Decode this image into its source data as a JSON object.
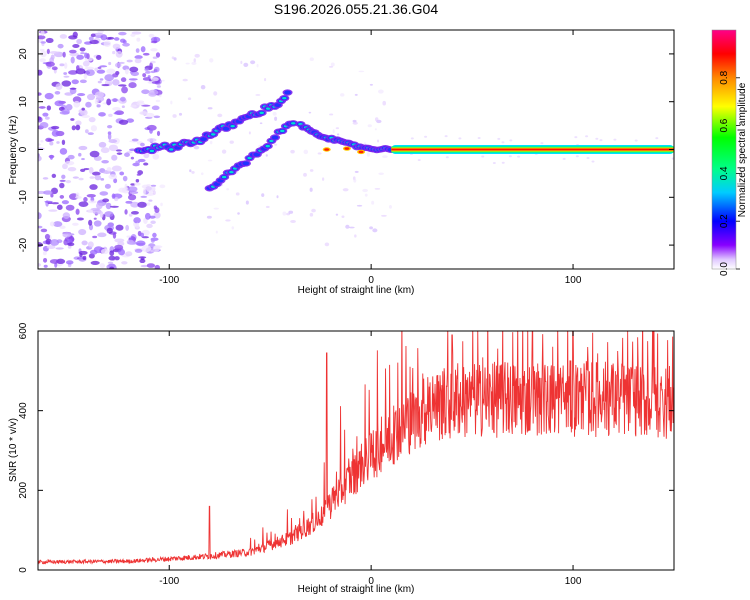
{
  "title": "S196.2026.055.21.36.G04",
  "chart_data": [
    {
      "type": "heatmap",
      "name": "spectrogram",
      "xlabel": "Height of straight line (km)",
      "ylabel": "Frequency (Hz)",
      "xlim": [
        -165,
        150
      ],
      "ylim": [
        -25,
        25
      ],
      "x_ticks": [
        -100,
        0,
        100
      ],
      "y_ticks": [
        -20,
        -10,
        0,
        10,
        20
      ],
      "colorbar": {
        "label": "Normalized spectral amplitude",
        "range": [
          0,
          1
        ],
        "ticks": [
          0.0,
          0.2,
          0.4,
          0.6,
          0.8
        ],
        "colormap": "rainbow",
        "colors": [
          "#ffffff",
          "#8800ff",
          "#0000ff",
          "#00ffff",
          "#00ff00",
          "#ffff00",
          "#ff8800",
          "#ff0000",
          "#ff0088"
        ]
      },
      "features": {
        "noise_region_x": [
          -165,
          -115
        ],
        "line_upper_branch": [
          [
            -115,
            0
          ],
          [
            -100,
            0.5
          ],
          [
            -85,
            2
          ],
          [
            -70,
            5
          ],
          [
            -55,
            8
          ],
          [
            -45,
            10
          ],
          [
            -40,
            12
          ]
        ],
        "line_lower_branch": [
          [
            -80,
            -8
          ],
          [
            -70,
            -5
          ],
          [
            -60,
            -2
          ],
          [
            -50,
            1
          ],
          [
            -45,
            4
          ],
          [
            -38,
            6
          ]
        ],
        "converging_line": [
          [
            -35,
            5
          ],
          [
            -25,
            3
          ],
          [
            -15,
            1.5
          ],
          [
            -5,
            0.5
          ],
          [
            0,
            0.2
          ],
          [
            10,
            0
          ]
        ],
        "steady_tone": {
          "x_start": 10,
          "x_end": 150,
          "frequency": 0
        }
      }
    },
    {
      "type": "line",
      "name": "snr",
      "xlabel": "Height of straight line (km)",
      "ylabel": "SNR (10 * v/v)",
      "xlim": [
        -165,
        150
      ],
      "ylim": [
        0,
        600
      ],
      "x_ticks": [
        -100,
        0,
        100
      ],
      "y_ticks": [
        0,
        200,
        400,
        600
      ],
      "line_color": "#ee3333",
      "envelope": [
        [
          -165,
          20
        ],
        [
          -120,
          22
        ],
        [
          -100,
          28
        ],
        [
          -80,
          35
        ],
        [
          -60,
          45
        ],
        [
          -40,
          80
        ],
        [
          -25,
          130
        ],
        [
          -15,
          200
        ],
        [
          -5,
          260
        ],
        [
          5,
          310
        ],
        [
          15,
          360
        ],
        [
          25,
          395
        ],
        [
          35,
          415
        ],
        [
          50,
          425
        ],
        [
          80,
          430
        ],
        [
          120,
          430
        ],
        [
          150,
          420
        ]
      ],
      "spikes": [
        [
          -80,
          160
        ],
        [
          -22,
          545
        ],
        [
          40,
          590
        ],
        [
          80,
          600
        ],
        [
          100,
          605
        ],
        [
          140,
          600
        ]
      ]
    }
  ]
}
